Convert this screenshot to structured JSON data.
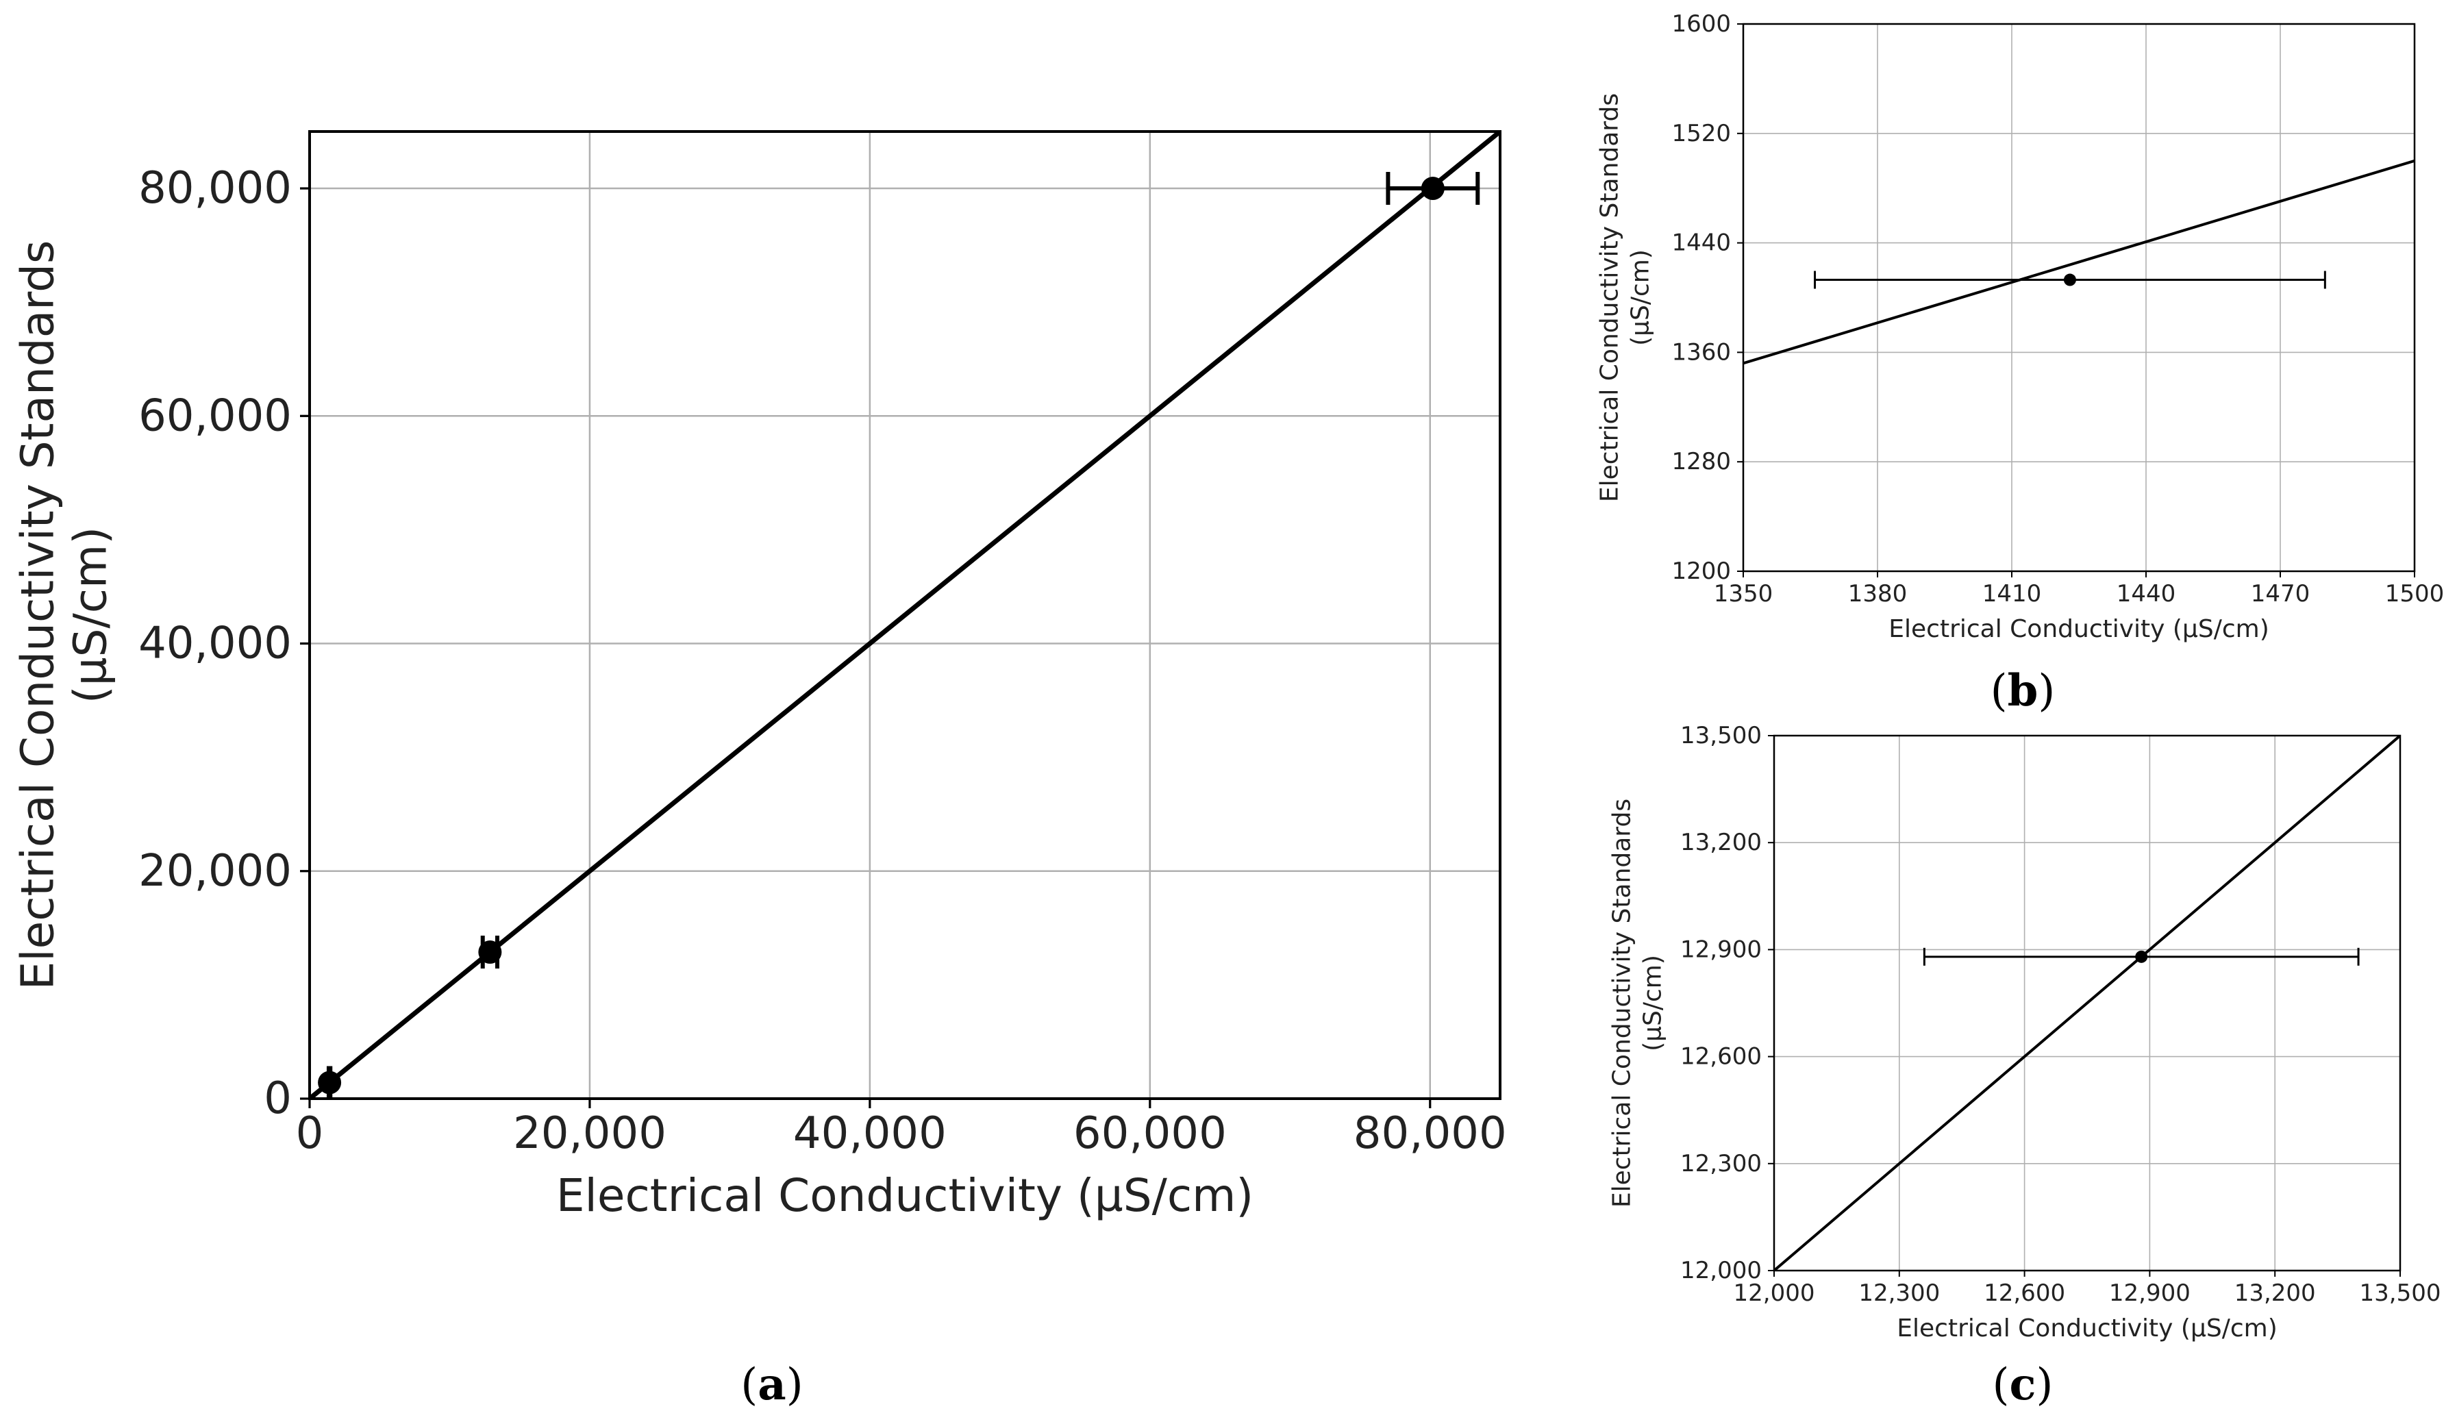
{
  "figure": {
    "panels": [
      {
        "id": "a",
        "caption_prefix": "(",
        "caption_letter": "a",
        "caption_suffix": ")"
      },
      {
        "id": "b",
        "caption_prefix": "(",
        "caption_letter": "b",
        "caption_suffix": ")"
      },
      {
        "id": "c",
        "caption_prefix": "(",
        "caption_letter": "c",
        "caption_suffix": ")"
      }
    ]
  },
  "chart_data": [
    {
      "panel": "a",
      "type": "scatter",
      "title": "",
      "xlabel": "Electrical Conductivity (µS/cm)",
      "ylabel_lines": [
        "Electrical Conductivity Standards",
        "(µS/cm)"
      ],
      "xlim": [
        0,
        85000
      ],
      "ylim": [
        0,
        85000
      ],
      "xticks": [
        0,
        20000,
        40000,
        60000,
        80000
      ],
      "yticks": [
        0,
        20000,
        40000,
        60000,
        80000
      ],
      "xtick_labels": [
        "0",
        "20,000",
        "40,000",
        "60,000",
        "80,000"
      ],
      "ytick_labels": [
        "0",
        "20,000",
        "40,000",
        "60,000",
        "80,000"
      ],
      "grid": true,
      "line": {
        "kind": "identity",
        "x": [
          0,
          85000
        ],
        "y": [
          0,
          85000
        ]
      },
      "points": [
        {
          "x": 1423,
          "y": 1413,
          "xerr": 57,
          "yerr": 0
        },
        {
          "x": 12880,
          "y": 12880,
          "xerr": 520,
          "yerr": 0
        },
        {
          "x": 80200,
          "y": 80000,
          "xerr": 3200,
          "yerr": 0
        }
      ]
    },
    {
      "panel": "b",
      "type": "scatter",
      "title": "",
      "xlabel": "Electrical Conductivity (µS/cm)",
      "ylabel_lines": [
        "Electrical Conductivity Standards",
        "(µS/cm)"
      ],
      "xlim": [
        1350,
        1500
      ],
      "ylim": [
        1200,
        1600
      ],
      "xticks": [
        1350,
        1380,
        1410,
        1440,
        1470,
        1500
      ],
      "yticks": [
        1200,
        1280,
        1360,
        1440,
        1520,
        1600
      ],
      "xtick_labels": [
        "1350",
        "1380",
        "1410",
        "1440",
        "1470",
        "1500"
      ],
      "ytick_labels": [
        "1200",
        "1280",
        "1360",
        "1440",
        "1520",
        "1600"
      ],
      "grid": true,
      "line": {
        "kind": "fit",
        "x": [
          1350,
          1500
        ],
        "y": [
          1352,
          1500
        ]
      },
      "points": [
        {
          "x": 1423,
          "y": 1413,
          "xerr": 57,
          "yerr": 0
        }
      ]
    },
    {
      "panel": "c",
      "type": "scatter",
      "title": "",
      "xlabel": "Electrical Conductivity (µS/cm)",
      "ylabel_lines": [
        "Electrical Conductivity Standards",
        "(µS/cm)"
      ],
      "xlim": [
        12000,
        13500
      ],
      "ylim": [
        12000,
        13500
      ],
      "xticks": [
        12000,
        12300,
        12600,
        12900,
        13200,
        13500
      ],
      "yticks": [
        12000,
        12300,
        12600,
        12900,
        13200,
        13500
      ],
      "xtick_labels": [
        "12,000",
        "12,300",
        "12,600",
        "12,900",
        "13,200",
        "13,500"
      ],
      "ytick_labels": [
        "12,000",
        "12,300",
        "12,600",
        "12,900",
        "13,200",
        "13,500"
      ],
      "grid": true,
      "line": {
        "kind": "identity",
        "x": [
          12000,
          13500
        ],
        "y": [
          12000,
          13500
        ]
      },
      "points": [
        {
          "x": 12880,
          "y": 12880,
          "xerr": 520,
          "yerr": 0
        }
      ]
    }
  ]
}
